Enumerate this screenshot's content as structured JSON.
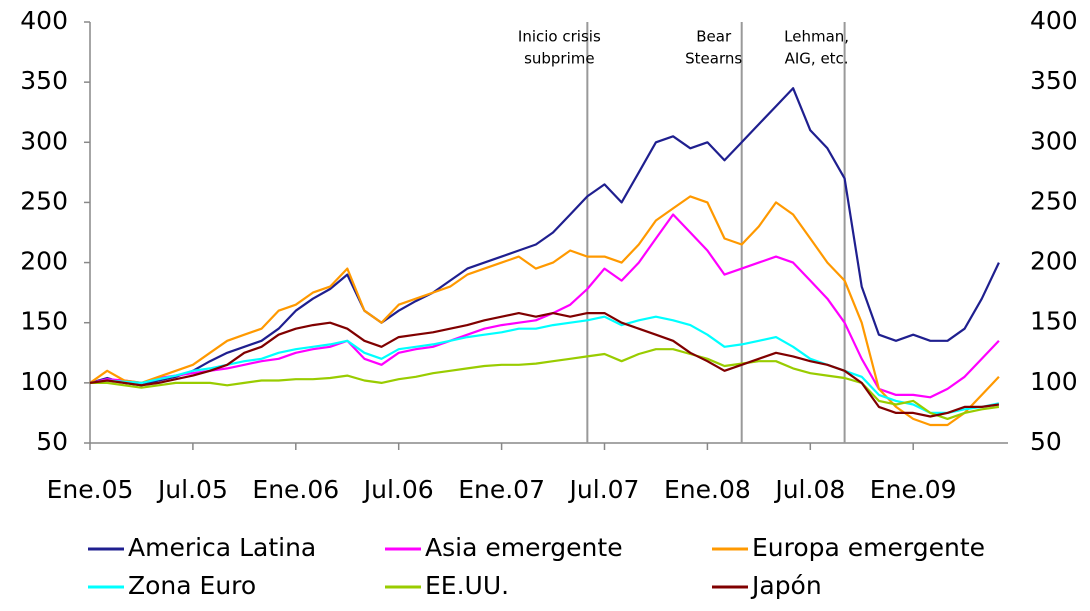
{
  "chart_data": {
    "type": "line",
    "categories": [
      "Ene.05",
      null,
      null,
      null,
      null,
      null,
      "Jul.05",
      null,
      null,
      null,
      null,
      null,
      "Ene.06",
      null,
      null,
      null,
      null,
      null,
      "Jul.06",
      null,
      null,
      null,
      null,
      null,
      "Ene.07",
      null,
      null,
      null,
      null,
      null,
      "Jul.07",
      null,
      null,
      null,
      null,
      null,
      "Ene.08",
      null,
      null,
      null,
      null,
      null,
      "Jul.08",
      null,
      null,
      null,
      null,
      null,
      "Ene.09",
      null,
      null,
      null,
      null,
      null
    ],
    "series": [
      {
        "name": "America Latina",
        "color": "#1f1f8f",
        "values": [
          100,
          104,
          100,
          98,
          102,
          105,
          110,
          118,
          125,
          130,
          135,
          145,
          160,
          170,
          178,
          190,
          160,
          150,
          160,
          168,
          175,
          185,
          195,
          200,
          205,
          210,
          215,
          225,
          240,
          255,
          265,
          250,
          275,
          300,
          305,
          295,
          300,
          285,
          300,
          315,
          330,
          345,
          310,
          295,
          270,
          180,
          140,
          135,
          140,
          135,
          135,
          145,
          170,
          200
        ]
      },
      {
        "name": "Asia emergente",
        "color": "#ff00ff",
        "values": [
          100,
          103,
          102,
          100,
          104,
          106,
          108,
          110,
          112,
          115,
          118,
          120,
          125,
          128,
          130,
          135,
          120,
          115,
          125,
          128,
          130,
          135,
          140,
          145,
          148,
          150,
          152,
          158,
          165,
          178,
          195,
          185,
          200,
          220,
          240,
          225,
          210,
          190,
          195,
          200,
          205,
          200,
          185,
          170,
          150,
          120,
          95,
          90,
          90,
          88,
          95,
          105,
          120,
          135
        ]
      },
      {
        "name": "Europa emergente",
        "color": "#ff9900",
        "values": [
          100,
          110,
          102,
          100,
          105,
          110,
          115,
          125,
          135,
          140,
          145,
          160,
          165,
          175,
          180,
          195,
          160,
          150,
          165,
          170,
          175,
          180,
          190,
          195,
          200,
          205,
          195,
          200,
          210,
          205,
          205,
          200,
          215,
          235,
          245,
          255,
          250,
          220,
          215,
          230,
          250,
          240,
          220,
          200,
          185,
          150,
          95,
          80,
          70,
          65,
          65,
          75,
          90,
          105
        ]
      },
      {
        "name": "Zona Euro",
        "color": "#00ffff",
        "values": [
          100,
          102,
          101,
          100,
          103,
          106,
          110,
          112,
          115,
          118,
          120,
          125,
          128,
          130,
          132,
          135,
          125,
          120,
          128,
          130,
          132,
          135,
          138,
          140,
          142,
          145,
          145,
          148,
          150,
          152,
          155,
          148,
          152,
          155,
          152,
          148,
          140,
          130,
          132,
          135,
          138,
          130,
          120,
          115,
          110,
          105,
          90,
          85,
          82,
          75,
          75,
          78,
          80,
          83
        ]
      },
      {
        "name": "EE.UU.",
        "color": "#99cc00",
        "values": [
          100,
          100,
          98,
          96,
          98,
          100,
          100,
          100,
          98,
          100,
          102,
          102,
          103,
          103,
          104,
          106,
          102,
          100,
          103,
          105,
          108,
          110,
          112,
          114,
          115,
          115,
          116,
          118,
          120,
          122,
          124,
          118,
          124,
          128,
          128,
          124,
          120,
          114,
          116,
          118,
          118,
          112,
          108,
          106,
          104,
          100,
          85,
          82,
          85,
          75,
          70,
          75,
          78,
          80
        ]
      },
      {
        "name": "Japón",
        "color": "#800000",
        "values": [
          100,
          102,
          100,
          98,
          100,
          103,
          106,
          110,
          115,
          125,
          130,
          140,
          145,
          148,
          150,
          145,
          135,
          130,
          138,
          140,
          142,
          145,
          148,
          152,
          155,
          158,
          155,
          158,
          155,
          158,
          158,
          150,
          145,
          140,
          135,
          125,
          118,
          110,
          115,
          120,
          125,
          122,
          118,
          115,
          110,
          100,
          80,
          75,
          75,
          72,
          75,
          80,
          80,
          82
        ]
      }
    ],
    "ylim": [
      50,
      400
    ],
    "yticks": [
      50,
      100,
      150,
      200,
      250,
      300,
      350,
      400
    ],
    "y2lim": [
      50,
      400
    ],
    "y2ticks": [
      50,
      100,
      150,
      200,
      250,
      300,
      350,
      400
    ],
    "annotations": [
      {
        "lines": [
          "Inicio crisis",
          "subprime"
        ],
        "x": 29
      },
      {
        "lines": [
          "Bear",
          "Stearns"
        ],
        "x": 38
      },
      {
        "lines": [
          "Lehman,",
          "AIG, etc."
        ],
        "x": 44
      }
    ],
    "grid": false
  }
}
